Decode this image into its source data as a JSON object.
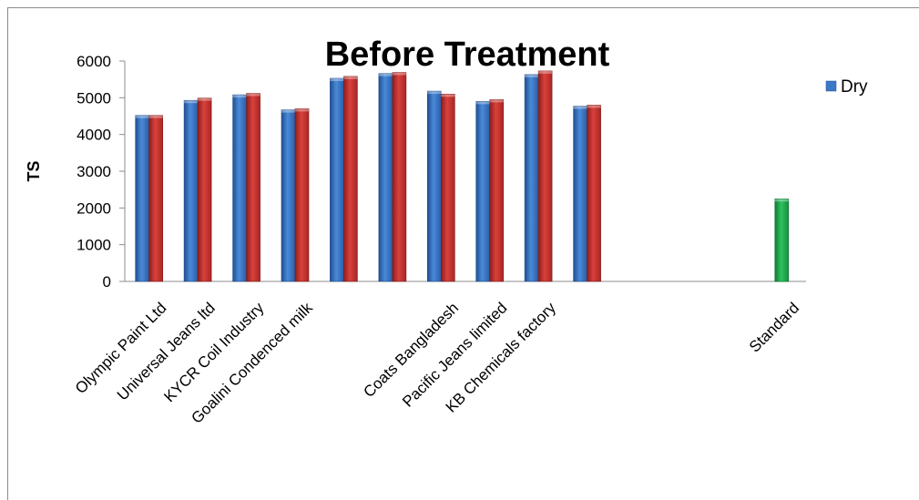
{
  "chart_data": {
    "type": "bar",
    "title": "Before Treatment",
    "xlabel": "",
    "ylabel": "TS",
    "ylim": [
      0,
      6000
    ],
    "yticks": [
      0,
      1000,
      2000,
      3000,
      4000,
      5000,
      6000
    ],
    "grid": false,
    "legend_position": "right",
    "categories": [
      "Olympic Paint Ltd",
      "Universal Jeans ltd",
      "KYCR Coil Industry",
      "Goalini Condenced milk",
      "",
      "",
      "Coats Bangladesh",
      "Pacific Jeans limited",
      "KB Chemicals factory",
      "",
      "",
      "",
      "",
      "Standard"
    ],
    "series": [
      {
        "name": "Dry",
        "color": "#3a78c8",
        "values": [
          4520,
          4930,
          5080,
          4670,
          5530,
          5660,
          5180,
          4900,
          5630,
          4770,
          null,
          null,
          null,
          null
        ]
      },
      {
        "name": "",
        "color": "#c8312f",
        "values": [
          4520,
          4990,
          5120,
          4700,
          5580,
          5690,
          5100,
          4950,
          5730,
          4800,
          null,
          null,
          null,
          null
        ]
      },
      {
        "name": "",
        "color": "#19a64a",
        "values": [
          null,
          null,
          null,
          null,
          null,
          null,
          null,
          null,
          null,
          null,
          null,
          null,
          null,
          2250
        ]
      }
    ]
  }
}
